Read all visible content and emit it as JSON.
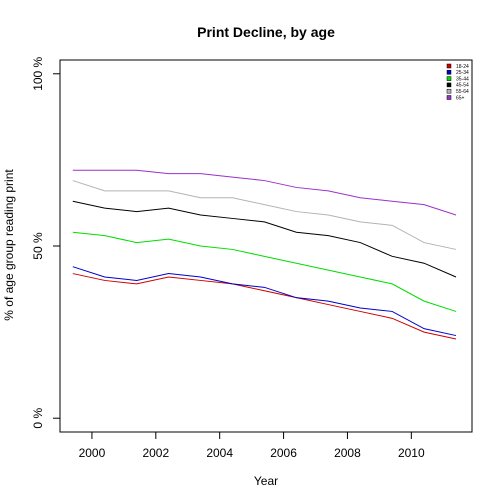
{
  "chart_data": {
    "type": "line",
    "title": "Print Decline, by age",
    "xlabel": "Year",
    "ylabel": "% of age group reading print",
    "xlim": [
      1999.0,
      2011.9
    ],
    "ylim": [
      -4,
      104
    ],
    "x_ticks": [
      2000,
      2002,
      2004,
      2006,
      2008,
      2010
    ],
    "x_tick_labels": [
      "2000",
      "2002",
      "2004",
      "2006",
      "2008",
      "2010"
    ],
    "y_ticks": [
      0,
      50,
      100
    ],
    "y_tick_labels": [
      "0 %",
      "50 %",
      "100 %"
    ],
    "grid": false,
    "legend_position": "top-right",
    "x": [
      1999.4,
      2000.4,
      2001.4,
      2002.4,
      2003.4,
      2004.4,
      2005.4,
      2006.4,
      2007.4,
      2008.4,
      2009.4,
      2010.4,
      2011.4
    ],
    "series": [
      {
        "name": "18-24",
        "color": "#cc0000",
        "values": [
          42,
          40,
          39,
          41,
          40,
          39,
          37,
          35,
          33,
          31,
          29,
          25,
          23
        ]
      },
      {
        "name": "25-34",
        "color": "#0000cc",
        "values": [
          44,
          41,
          40,
          42,
          41,
          39,
          38,
          35,
          34,
          32,
          31,
          26,
          24
        ]
      },
      {
        "name": "35-44",
        "color": "#00dd00",
        "values": [
          54,
          53,
          51,
          52,
          50,
          49,
          47,
          45,
          43,
          41,
          39,
          34,
          31
        ]
      },
      {
        "name": "45-54",
        "color": "#000000",
        "values": [
          63,
          61,
          60,
          61,
          59,
          58,
          57,
          54,
          53,
          51,
          47,
          45,
          41
        ]
      },
      {
        "name": "55-64",
        "color": "#b3b3b3",
        "values": [
          69,
          66,
          66,
          66,
          64,
          64,
          62,
          60,
          59,
          57,
          56,
          51,
          49
        ]
      },
      {
        "name": "65+",
        "color": "#9932cc",
        "values": [
          72,
          72,
          72,
          71,
          71,
          70,
          69,
          67,
          66,
          64,
          63,
          62,
          59
        ]
      }
    ]
  }
}
